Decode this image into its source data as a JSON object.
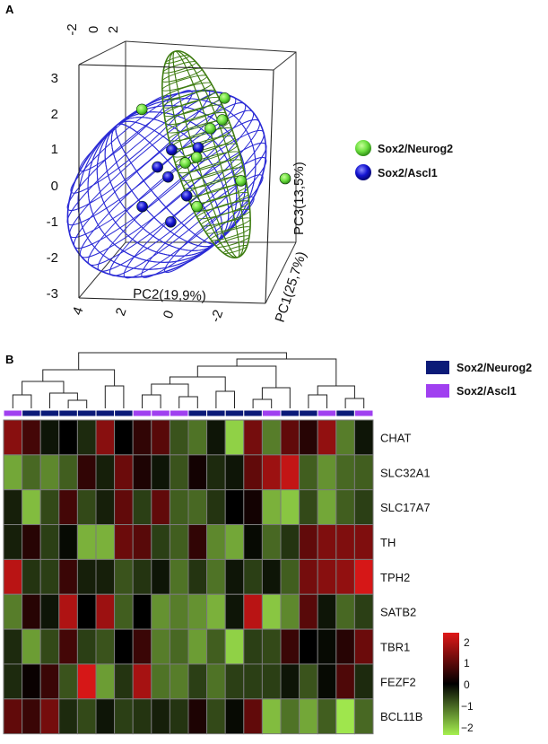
{
  "panel_a_label": "A",
  "panel_b_label": "B",
  "chart_data": [
    {
      "type": "scatter",
      "title": "",
      "axes": {
        "pc1_label": "PC1(25,7%)",
        "pc2_label": "PC2(19,9%)",
        "pc3_label": "PC3(13,5%)",
        "top_ticks": [
          "-2",
          "0",
          "2"
        ],
        "left_ticks": [
          "3",
          "2",
          "1",
          "0",
          "-1",
          "-2",
          "-3"
        ],
        "bottom_ticks": [
          "4",
          "2",
          "0",
          "-2"
        ]
      },
      "legend": [
        {
          "label": "Sox2/Neurog2",
          "color": "#6ee040"
        },
        {
          "label": "Sox2/Ascl1",
          "color": "#1414d2"
        }
      ],
      "series": [
        {
          "name": "Sox2/Neurog2",
          "points": [
            {
              "pc2": -1.5,
              "pc3": 2.3,
              "pc1": -0.6
            },
            {
              "pc2": 2.4,
              "pc3": 2.5,
              "pc1": 0.2
            },
            {
              "pc2": 1.6,
              "pc3": 1.6,
              "pc1": 0.4
            },
            {
              "pc2": 2.1,
              "pc3": 1.8,
              "pc1": 0.7
            },
            {
              "pc2": 1.2,
              "pc3": 0.9,
              "pc1": -0.4
            },
            {
              "pc2": 0.3,
              "pc3": 0.6,
              "pc1": 0.5
            },
            {
              "pc2": 2.9,
              "pc3": 0.0,
              "pc1": 1.1
            },
            {
              "pc2": 5.0,
              "pc3": 0.0,
              "pc1": 1.5
            },
            {
              "pc2": 1.0,
              "pc3": -0.6,
              "pc1": 0.2
            }
          ]
        },
        {
          "name": "Sox2/Ascl1",
          "points": [
            {
              "pc2": -0.1,
              "pc3": 1.1,
              "pc1": -0.3
            },
            {
              "pc2": 1.1,
              "pc3": 1.1,
              "pc1": 0.1
            },
            {
              "pc2": -0.1,
              "pc3": 0.4,
              "pc1": -0.8
            },
            {
              "pc2": -0.6,
              "pc3": 0.7,
              "pc1": -0.9
            },
            {
              "pc2": 0.7,
              "pc3": -0.2,
              "pc1": -0.4
            },
            {
              "pc2": -1.3,
              "pc3": -0.4,
              "pc1": -1.1
            },
            {
              "pc2": 0.0,
              "pc3": -0.9,
              "pc1": -0.7
            }
          ]
        }
      ]
    },
    {
      "type": "heatmap",
      "title": "",
      "legend": [
        {
          "label": "Sox2/Neurog2",
          "color": "#0b1a78"
        },
        {
          "label": "Sox2/Ascl1",
          "color": "#a040f0"
        }
      ],
      "column_groups": [
        "A",
        "N",
        "N",
        "N",
        "N",
        "N",
        "N",
        "A",
        "A",
        "A",
        "N",
        "N",
        "N",
        "N",
        "A",
        "N",
        "N",
        "A",
        "N",
        "A"
      ],
      "rows": [
        "CHAT",
        "SLC32A1",
        "SLC17A7",
        "TH",
        "TPH2",
        "SATB2",
        "TBR1",
        "FEZF2",
        "BCL11B"
      ],
      "values": [
        [
          1.4,
          0.7,
          -0.2,
          0.0,
          -0.4,
          1.4,
          0.0,
          0.5,
          0.9,
          -0.8,
          -1.1,
          -0.2,
          -2.0,
          1.2,
          -1.2,
          1.0,
          0.4,
          1.5,
          -1.2,
          -0.2
        ],
        [
          -1.6,
          -1.0,
          -1.3,
          -0.9,
          0.5,
          -0.3,
          1.1,
          0.3,
          -0.2,
          -0.8,
          0.2,
          -0.4,
          -0.2,
          1.0,
          1.6,
          2.0,
          -0.9,
          -1.4,
          -1.0,
          -0.9
        ],
        [
          -0.3,
          -1.8,
          -0.7,
          0.7,
          -0.7,
          -0.3,
          1.0,
          -0.6,
          1.0,
          -0.9,
          -1.0,
          -0.5,
          0.0,
          0.2,
          -1.7,
          -1.9,
          -0.7,
          -1.6,
          -0.9,
          -0.6
        ],
        [
          -0.3,
          0.4,
          -0.6,
          -0.1,
          -1.7,
          -1.7,
          1.1,
          0.9,
          -0.6,
          -0.9,
          0.5,
          -1.3,
          -1.6,
          -0.1,
          -1.0,
          -0.5,
          1.0,
          1.3,
          1.3,
          1.3
        ],
        [
          1.9,
          -0.5,
          -0.6,
          0.6,
          -0.3,
          -0.3,
          -0.8,
          -0.5,
          -0.2,
          -1.1,
          -0.5,
          -1.1,
          -0.2,
          -0.6,
          -0.2,
          -0.9,
          1.2,
          1.4,
          1.5,
          2.2
        ],
        [
          -1.2,
          0.4,
          -0.2,
          1.8,
          0.0,
          1.6,
          -0.9,
          0.0,
          -1.4,
          -1.2,
          -1.4,
          -1.7,
          -0.2,
          1.9,
          -1.9,
          -1.3,
          0.9,
          -0.2,
          -1.0,
          -0.6
        ],
        [
          -0.4,
          -1.5,
          -0.7,
          0.7,
          -0.6,
          -0.8,
          0.0,
          0.6,
          -1.2,
          -1.0,
          -1.5,
          -0.9,
          -2.0,
          -0.6,
          -0.7,
          0.6,
          0.0,
          -0.1,
          0.4,
          1.1
        ],
        [
          -0.4,
          0.1,
          0.6,
          -0.8,
          2.2,
          -1.5,
          -0.5,
          1.7,
          -1.1,
          -1.2,
          -0.6,
          -1.1,
          -0.6,
          -0.6,
          -0.6,
          -0.2,
          -0.8,
          -0.1,
          0.8,
          -0.4
        ],
        [
          1.0,
          0.6,
          1.2,
          -0.4,
          -0.7,
          -0.2,
          -0.6,
          -0.5,
          -0.3,
          -0.5,
          0.3,
          -0.7,
          -0.1,
          1.0,
          -1.8,
          -1.1,
          -1.6,
          -0.9,
          -2.2,
          -1.0
        ]
      ],
      "colorbar": {
        "ticks": [
          "2",
          "1",
          "0",
          "−1",
          "−2"
        ],
        "range": [
          -2.3,
          2.3
        ],
        "low": "#a6f050",
        "mid": "#000000",
        "high": "#e01818"
      }
    }
  ]
}
